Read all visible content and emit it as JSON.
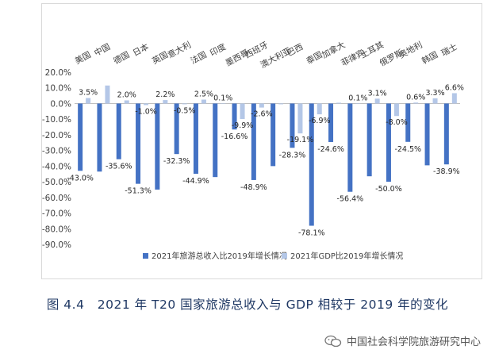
{
  "figure": {
    "caption_label": "图 4.4",
    "caption_text": "2021 年 T20 国家旅游总收入与 GDP 相较于 2019 年的变化",
    "watermark": "中国社会科学院旅游研究中心"
  },
  "chart_data": {
    "type": "bar",
    "title": "",
    "xlabel": "",
    "ylabel": "",
    "ylim": [
      -90,
      20
    ],
    "yticks": [
      20,
      10,
      0,
      -10,
      -20,
      -30,
      -40,
      -50,
      -60,
      -70,
      -80,
      -90
    ],
    "ytick_labels": [
      "20.0%",
      "10.0%",
      "0.0%",
      "-10.0%",
      "-20.0%",
      "-30.0%",
      "-40.0%",
      "-50.0%",
      "-60.0%",
      "-70.0%",
      "-80.0%",
      "-90.0%"
    ],
    "grid": false,
    "legend_position": "bottom",
    "categories": [
      "美国",
      "中国",
      "德国",
      "日本",
      "英国",
      "意大利",
      "法国",
      "印度",
      "墨西哥",
      "西班牙",
      "澳大利亚",
      "巴西",
      "泰国",
      "加拿大",
      "菲律宾",
      "土耳其",
      "俄罗斯",
      "奥地利",
      "韩国",
      "瑞士"
    ],
    "series": [
      {
        "name": "2021年旅游总收入比2019年增长情况",
        "color": "#4472c4",
        "values": [
          -43.0,
          -43.5,
          -35.6,
          -51.3,
          -55.0,
          -32.3,
          -44.9,
          -47.0,
          -16.6,
          -48.9,
          -40.0,
          -28.3,
          -78.1,
          -24.6,
          -56.4,
          -46.5,
          -50.0,
          -24.5,
          -39.5,
          -38.9
        ],
        "data_labels": [
          "-43.0%",
          "",
          "-35.6%",
          "-51.3%",
          "",
          "-32.3%",
          "-44.9%",
          "",
          "-16.6%",
          "-48.9%",
          "",
          "-28.3%",
          "-78.1%",
          "-24.6%",
          "-56.4%",
          "",
          "-50.0%",
          "-24.5%",
          "",
          "-38.9%"
        ]
      },
      {
        "name": "2021年GDP比2019年增长情况",
        "color": "#b4c7e7",
        "values": [
          3.5,
          11.5,
          2.0,
          -1.0,
          2.2,
          -0.5,
          2.5,
          0.1,
          -9.9,
          -2.6,
          -0.5,
          -19.1,
          -6.9,
          0.5,
          0.1,
          3.1,
          -8.0,
          0.6,
          3.3,
          6.6
        ],
        "data_labels": [
          "3.5%",
          "",
          "2.0%",
          "-1.0%",
          "2.2%",
          "-0.5%",
          "2.5%",
          "0.1%",
          "-9.9%",
          "-2.6%",
          "",
          "-19.1%",
          "-6.9%",
          "",
          "0.1%",
          "3.1%",
          "-8.0%",
          "0.6%",
          "3.3%",
          "6.6%"
        ]
      }
    ]
  }
}
